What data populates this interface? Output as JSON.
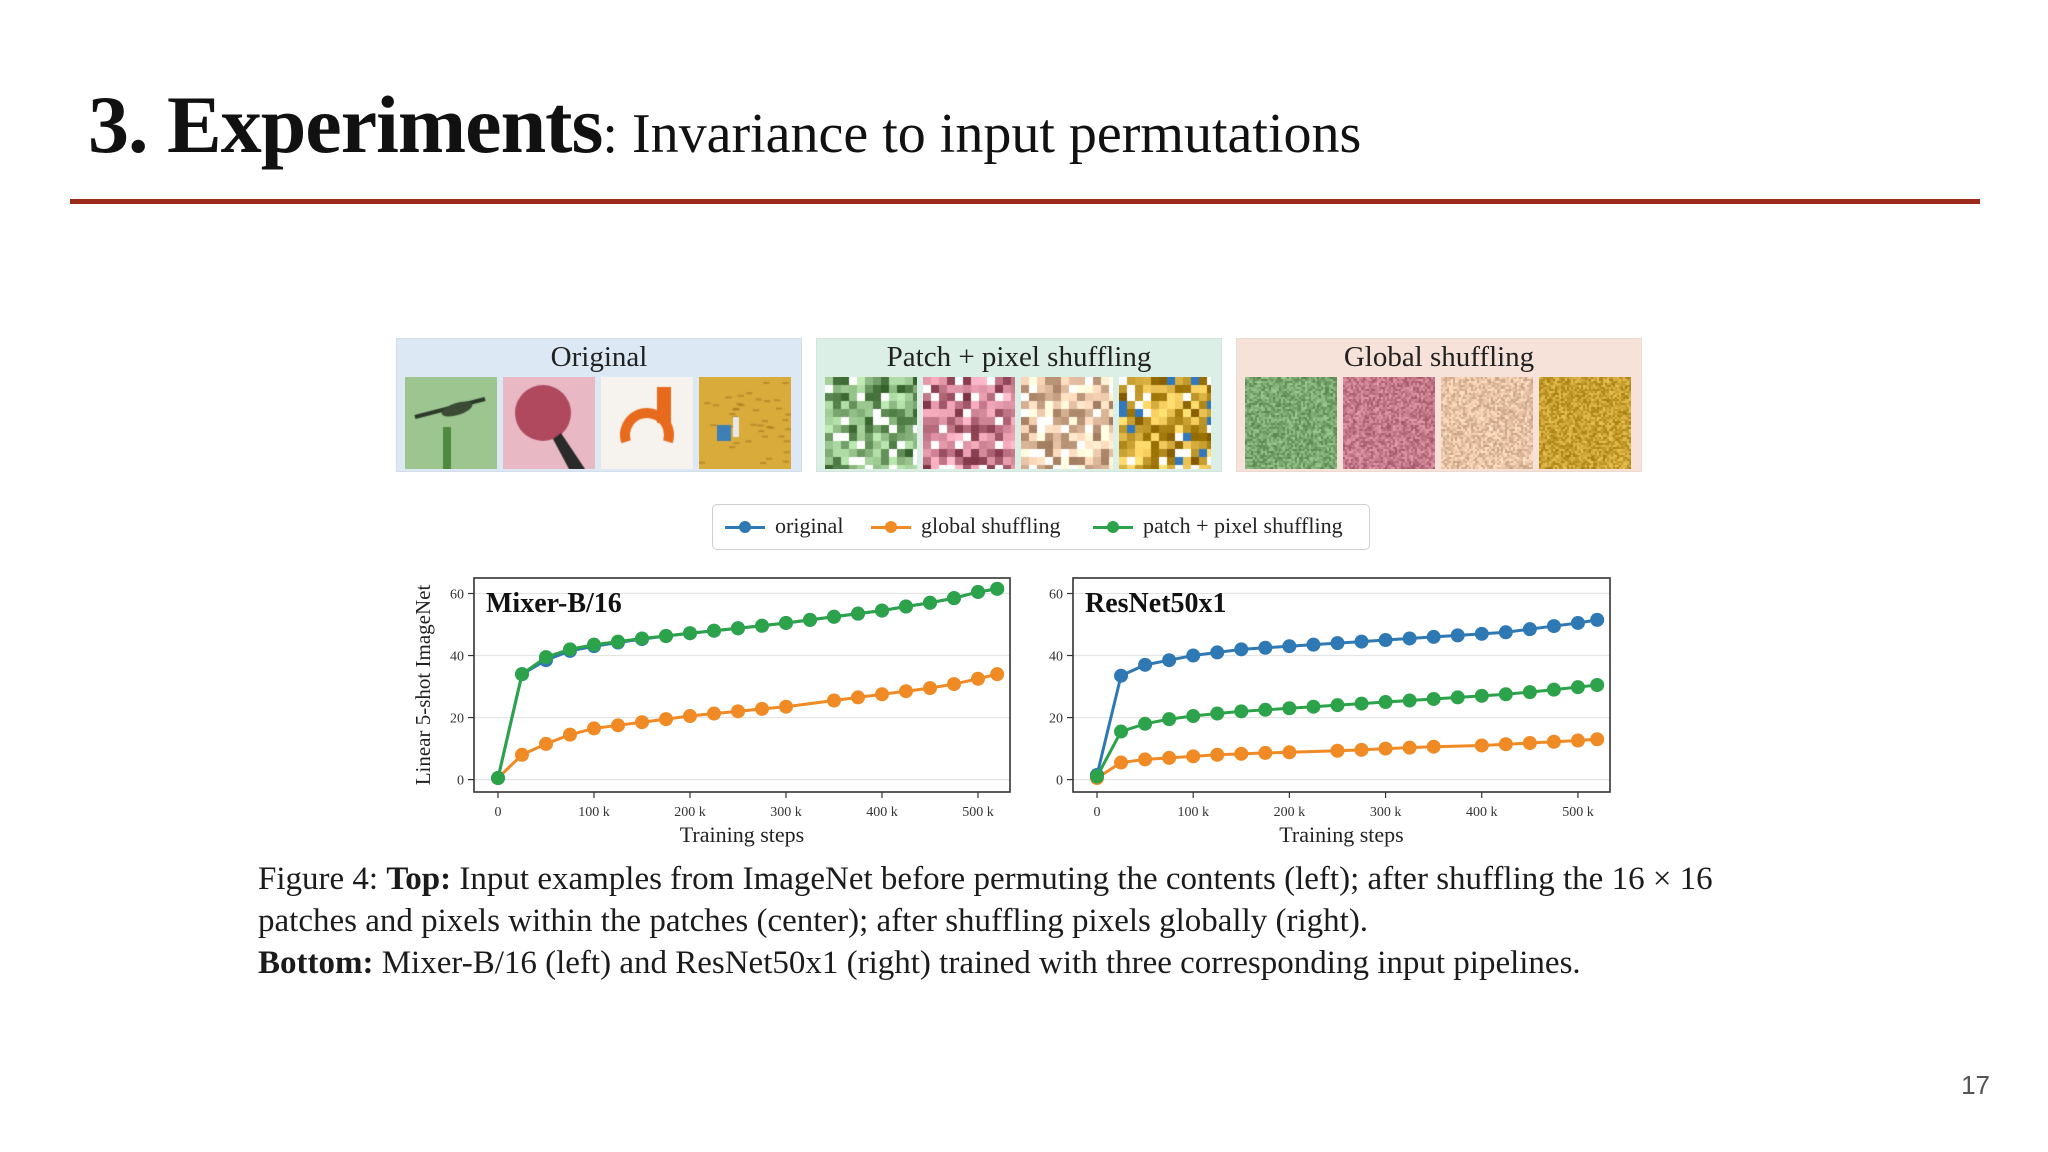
{
  "slide": {
    "title_bold": "3. Experiments",
    "title_rest": ": Invariance to input permutations",
    "accent_color": "#9b2a1a",
    "page_number": "17"
  },
  "figure": {
    "panels": [
      {
        "title": "Original",
        "bg": "#dce8f4",
        "style": "original"
      },
      {
        "title": "Patch + pixel shuffling",
        "bg": "#dcefe6",
        "style": "patch"
      },
      {
        "title": "Global shuffling",
        "bg": "#f6e2d8",
        "style": "global"
      }
    ],
    "thumb_colors": [
      "#7aa870",
      "#c47a8a",
      "#e9c3a6",
      "#c9a032"
    ],
    "legend": [
      {
        "label": "original",
        "color": "#2e78b4"
      },
      {
        "label": "global shuffling",
        "color": "#f08a24"
      },
      {
        "label": "patch + pixel shuffling",
        "color": "#2ca34a"
      }
    ],
    "ylabel": "Linear 5-shot ImageNet",
    "xlabel": "Training steps"
  },
  "chart_data": [
    {
      "type": "line",
      "title": "Mixer-B/16",
      "xlabel": "Training steps",
      "ylabel": "Linear 5-shot ImageNet",
      "xlim": [
        0,
        525000
      ],
      "ylim": [
        -4,
        65
      ],
      "xticks": [
        0,
        100000,
        200000,
        300000,
        400000,
        500000
      ],
      "xtick_labels": [
        "0",
        "100 k",
        "200 k",
        "300 k",
        "400 k",
        "500 k"
      ],
      "yticks": [
        0,
        20,
        40,
        60
      ],
      "ytick_labels": [
        "0",
        "20",
        "40",
        "60"
      ],
      "series": [
        {
          "name": "original",
          "color": "#2e78b4",
          "x": [
            0,
            25000,
            50000,
            75000,
            100000,
            125000,
            150000,
            175000,
            200000,
            225000,
            250000,
            275000,
            300000,
            325000,
            350000,
            375000,
            400000,
            425000,
            450000,
            475000,
            500000,
            520000
          ],
          "y": [
            0.5,
            34,
            38.5,
            41.5,
            43,
            44.2,
            45.3,
            46.3,
            47.2,
            48,
            48.8,
            49.6,
            50.5,
            51.5,
            52.5,
            53.5,
            54.5,
            55.8,
            57,
            58.5,
            60.5,
            61.5
          ]
        },
        {
          "name": "global shuffling",
          "color": "#f08a24",
          "x": [
            0,
            25000,
            50000,
            75000,
            100000,
            125000,
            150000,
            175000,
            200000,
            225000,
            250000,
            275000,
            300000,
            350000,
            375000,
            400000,
            425000,
            450000,
            475000,
            500000,
            520000
          ],
          "y": [
            0.5,
            8,
            11.5,
            14.5,
            16.5,
            17.5,
            18.5,
            19.5,
            20.5,
            21.3,
            22,
            22.8,
            23.5,
            25.5,
            26.5,
            27.5,
            28.5,
            29.5,
            30.8,
            32.5,
            34
          ]
        },
        {
          "name": "patch + pixel shuffling",
          "color": "#2ca34a",
          "x": [
            0,
            25000,
            50000,
            75000,
            100000,
            125000,
            150000,
            175000,
            200000,
            225000,
            250000,
            275000,
            300000,
            325000,
            350000,
            375000,
            400000,
            425000,
            450000,
            475000,
            500000,
            520000
          ],
          "y": [
            0.5,
            34,
            39.5,
            42,
            43.5,
            44.5,
            45.5,
            46.3,
            47.2,
            48,
            48.8,
            49.6,
            50.5,
            51.5,
            52.5,
            53.5,
            54.5,
            55.8,
            57,
            58.5,
            60.5,
            61.5
          ]
        }
      ]
    },
    {
      "type": "line",
      "title": "ResNet50x1",
      "xlabel": "Training steps",
      "ylabel": "",
      "xlim": [
        0,
        525000
      ],
      "ylim": [
        -4,
        65
      ],
      "xticks": [
        0,
        100000,
        200000,
        300000,
        400000,
        500000
      ],
      "xtick_labels": [
        "0",
        "100 k",
        "200 k",
        "300 k",
        "400 k",
        "500 k"
      ],
      "yticks": [
        0,
        20,
        40,
        60
      ],
      "ytick_labels": [
        "0",
        "20",
        "40",
        "60"
      ],
      "series": [
        {
          "name": "original",
          "color": "#2e78b4",
          "x": [
            0,
            25000,
            50000,
            75000,
            100000,
            125000,
            150000,
            175000,
            200000,
            225000,
            250000,
            275000,
            300000,
            325000,
            350000,
            375000,
            400000,
            425000,
            450000,
            475000,
            500000,
            520000
          ],
          "y": [
            1.5,
            33.5,
            37,
            38.5,
            40,
            41,
            42,
            42.5,
            43,
            43.5,
            44,
            44.5,
            45,
            45.5,
            46,
            46.5,
            47,
            47.5,
            48.5,
            49.5,
            50.5,
            51.5
          ]
        },
        {
          "name": "global shuffling",
          "color": "#f08a24",
          "x": [
            0,
            25000,
            50000,
            75000,
            100000,
            125000,
            150000,
            175000,
            200000,
            250000,
            275000,
            300000,
            325000,
            350000,
            400000,
            425000,
            450000,
            475000,
            500000,
            520000
          ],
          "y": [
            0.5,
            5.5,
            6.5,
            7,
            7.5,
            8,
            8.3,
            8.6,
            8.8,
            9.3,
            9.6,
            10,
            10.3,
            10.6,
            11,
            11.4,
            11.8,
            12.2,
            12.6,
            13
          ]
        },
        {
          "name": "patch + pixel shuffling",
          "color": "#2ca34a",
          "x": [
            0,
            25000,
            50000,
            75000,
            100000,
            125000,
            150000,
            175000,
            200000,
            225000,
            250000,
            275000,
            300000,
            325000,
            350000,
            375000,
            400000,
            425000,
            450000,
            475000,
            500000,
            520000
          ],
          "y": [
            1,
            15.5,
            18,
            19.5,
            20.5,
            21.3,
            22,
            22.5,
            23,
            23.5,
            24,
            24.5,
            25,
            25.5,
            26,
            26.5,
            27,
            27.5,
            28.2,
            29,
            29.8,
            30.5
          ]
        }
      ]
    }
  ],
  "caption": {
    "prefix": "Figure 4: ",
    "top_label": "Top:",
    "top_text": " Input examples from ImageNet before permuting the contents (left); after shuffling the 16 × 16 patches and pixels within the patches (center); after shuffling pixels globally (right).",
    "bottom_label": "Bottom:",
    "bottom_text": " Mixer-B/16 (left) and ResNet50x1 (right) trained with three corresponding input pipelines."
  }
}
